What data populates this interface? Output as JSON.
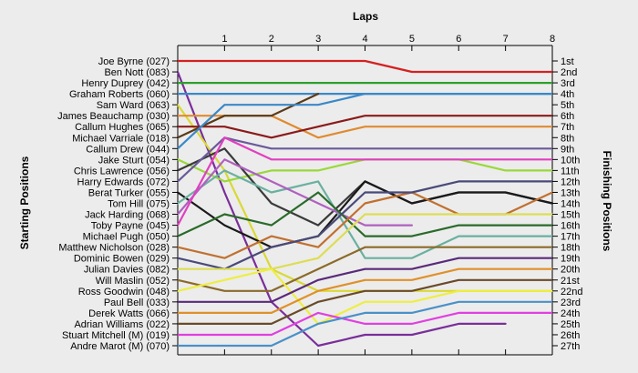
{
  "chart_data": {
    "type": "line",
    "title": "Laps",
    "xlabel": "Laps",
    "ylabel_left": "Starting Positions",
    "ylabel_right": "Finishing Positions",
    "x": [
      0,
      1,
      2,
      3,
      4,
      5,
      6,
      7,
      8
    ],
    "x_tick_labels": [
      "1",
      "2",
      "3",
      "4",
      "5",
      "6",
      "7",
      "8"
    ],
    "xlim": [
      0,
      8
    ],
    "ylim": [
      1,
      27
    ],
    "y_inverted": true,
    "grid": false,
    "left_labels": [
      "Joe Byrne (027)",
      "Ben Nott (083)",
      "Henry Duprey (042)",
      "Graham Roberts (060)",
      "Sam Ward (063)",
      "James Beauchamp (030)",
      "Callum Hughes (065)",
      "Michael Varriale (018)",
      "Callum Drew (044)",
      "Jake Sturt (054)",
      "Chris Lawrence (056)",
      "Harry Edwards (072)",
      "Berat Turker (055)",
      "Tom Hill (075)",
      "Jack Harding (068)",
      "Toby Payne (045)",
      "Michael Pugh (050)",
      "Matthew Nicholson (028)",
      "Dominic Bowen (029)",
      "Julian Davies (082)",
      "Will Maslin (052)",
      "Ross Goodwin (048)",
      "Paul Bell (033)",
      "Derek Watts (066)",
      "Adrian Williams (022)",
      "Stuart Mitchell  (M) (019)",
      "Andre Marot  (M) (070)"
    ],
    "right_labels": [
      "1st",
      "2nd",
      "3rd",
      "4th",
      "5th",
      "6th",
      "7th",
      "8th",
      "9th",
      "10th",
      "11th",
      "12th",
      "13th",
      "14th",
      "15th",
      "16th",
      "17th",
      "18th",
      "19th",
      "20th",
      "21st",
      "22nd",
      "23rd",
      "24th",
      "25th",
      "26th",
      "27th"
    ],
    "series": [
      {
        "color": "#d42020",
        "values": [
          1,
          1,
          1,
          1,
          1,
          2,
          2,
          2,
          2
        ]
      },
      {
        "color": "#7a2e9a",
        "values": [
          2,
          13,
          23,
          27,
          26,
          26,
          25,
          25,
          null
        ]
      },
      {
        "color": "#2ca02c",
        "values": [
          3,
          3,
          3,
          3,
          3,
          3,
          3,
          3,
          3
        ]
      },
      {
        "color": "#3a88c8",
        "values": [
          4,
          4,
          4,
          4,
          4,
          4,
          4,
          4,
          4
        ]
      },
      {
        "color": "#d9d935",
        "values": [
          5,
          11,
          20,
          22,
          22,
          22,
          22,
          22,
          22
        ]
      },
      {
        "color": "#e08a30",
        "values": [
          6,
          6,
          6,
          8,
          7,
          7,
          7,
          7,
          7
        ]
      },
      {
        "color": "#8b1a1a",
        "values": [
          7,
          7,
          8,
          7,
          6,
          6,
          6,
          6,
          6
        ]
      },
      {
        "color": "#5a3a1a",
        "values": [
          8,
          6,
          6,
          4,
          null,
          null,
          null,
          null,
          null
        ]
      },
      {
        "color": "#3a88c8",
        "values": [
          9,
          5,
          5,
          5,
          4,
          4,
          4,
          4,
          4
        ]
      },
      {
        "color": "#9ad83a",
        "values": [
          10,
          12,
          11,
          11,
          10,
          10,
          10,
          11,
          11
        ]
      },
      {
        "color": "#3a3a3a",
        "values": [
          11,
          9,
          14,
          16,
          12,
          14,
          13,
          13,
          14
        ]
      },
      {
        "color": "#6a5a9a",
        "values": [
          12,
          8,
          9,
          9,
          9,
          9,
          9,
          9,
          9
        ]
      },
      {
        "color": "#1a1a1a",
        "values": [
          13,
          16,
          18,
          17,
          12,
          14,
          13,
          13,
          14
        ]
      },
      {
        "color": "#6ab0a0",
        "values": [
          14,
          11,
          13,
          12,
          19,
          19,
          17,
          17,
          17
        ]
      },
      {
        "color": "#b060c0",
        "values": [
          15,
          10,
          12,
          14,
          16,
          16,
          null,
          null,
          null
        ]
      },
      {
        "color": "#e040c0",
        "values": [
          16,
          8,
          10,
          10,
          10,
          10,
          10,
          10,
          10
        ]
      },
      {
        "color": "#2a6a2a",
        "values": [
          17,
          15,
          16,
          13,
          17,
          17,
          16,
          16,
          16
        ]
      },
      {
        "color": "#c07030",
        "values": [
          18,
          19,
          17,
          18,
          14,
          13,
          15,
          15,
          13
        ]
      },
      {
        "color": "#4a4a7a",
        "values": [
          19,
          20,
          18,
          17,
          13,
          13,
          12,
          12,
          12
        ]
      },
      {
        "color": "#dddd55",
        "values": [
          20,
          20,
          20,
          19,
          15,
          15,
          15,
          15,
          15
        ]
      },
      {
        "color": "#8a6a2a",
        "values": [
          21,
          22,
          22,
          20,
          18,
          18,
          18,
          18,
          18
        ]
      },
      {
        "color": "#eeee40",
        "values": [
          22,
          21,
          20,
          25,
          23,
          23,
          22,
          22,
          22
        ]
      },
      {
        "color": "#5a2a7a",
        "values": [
          23,
          23,
          23,
          21,
          20,
          20,
          19,
          19,
          19
        ]
      },
      {
        "color": "#e0902a",
        "values": [
          24,
          24,
          24,
          22,
          21,
          21,
          20,
          20,
          20
        ]
      },
      {
        "color": "#6a4a2a",
        "values": [
          25,
          25,
          25,
          23,
          22,
          22,
          21,
          21,
          21
        ]
      },
      {
        "color": "#e040e0",
        "values": [
          26,
          26,
          26,
          24,
          25,
          25,
          24,
          24,
          24
        ]
      },
      {
        "color": "#4a90c8",
        "values": [
          27,
          27,
          27,
          25,
          24,
          24,
          23,
          23,
          23
        ]
      }
    ]
  }
}
